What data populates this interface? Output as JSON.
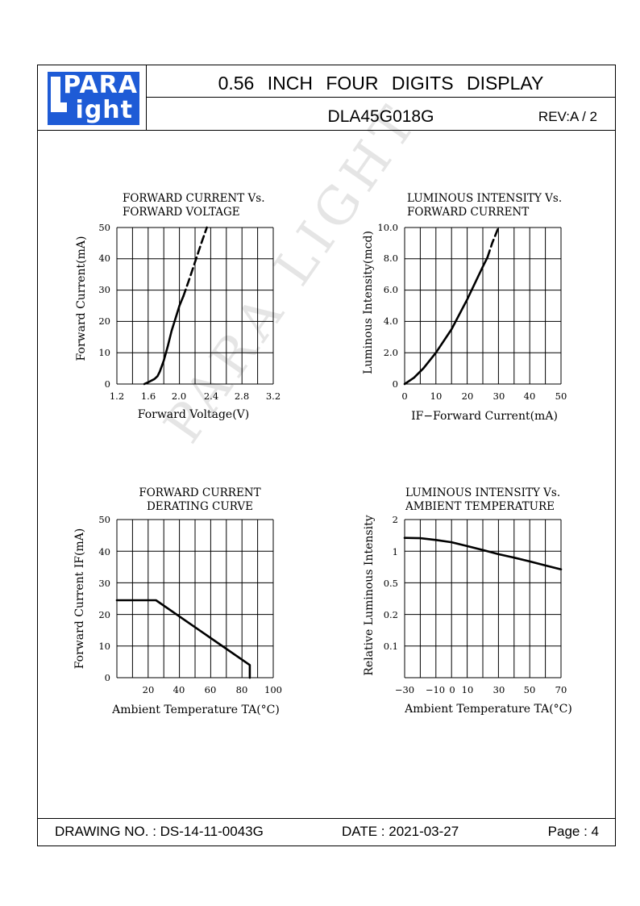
{
  "header": {
    "logo_line1": "PARA",
    "logo_line2": "ight",
    "title": "0.56 INCH FOUR DIGITS DISPLAY",
    "model": "DLA45G018G",
    "revision": "REV:A / 2"
  },
  "footer": {
    "drawing_no": "DRAWING NO. : DS-14-11-0043G",
    "date": "DATE : 2021-03-27",
    "page": "Page : 4"
  },
  "watermark": "PARA LIGHT",
  "colors": {
    "logo_blue": "#1e5bd6",
    "grid": "#000000",
    "curve": "#000000"
  },
  "chart_data": [
    {
      "type": "line",
      "title": [
        "FORWARD CURRENT Vs.",
        "FORWARD VOLTAGE"
      ],
      "xlabel": "Forward Voltage(V)",
      "ylabel": "Forward Current(mA)",
      "xticks": [
        "1.2",
        "1.6",
        "2.0",
        "2.4",
        "2.8",
        "3.2"
      ],
      "yticks": [
        "0",
        "10",
        "20",
        "30",
        "40",
        "50"
      ],
      "xlim": [
        1.2,
        3.2
      ],
      "ylim": [
        0,
        50
      ],
      "grid": true,
      "series": [
        {
          "style": "solid",
          "x": [
            1.55,
            1.62,
            1.68,
            1.72,
            1.75,
            1.8,
            1.85,
            1.9,
            1.95,
            2.0,
            2.05
          ],
          "y": [
            0,
            0.8,
            1.6,
            2.5,
            4,
            7.5,
            12,
            17,
            21,
            25,
            28
          ]
        },
        {
          "style": "dashed",
          "x": [
            2.05,
            2.12,
            2.2,
            2.28,
            2.35
          ],
          "y": [
            28,
            33,
            39,
            45,
            50
          ]
        }
      ]
    },
    {
      "type": "line",
      "title": [
        "LUMINOUS INTENSITY Vs.",
        "FORWARD CURRENT"
      ],
      "xlabel": "IF−Forward Current(mA)",
      "ylabel": "Luminous Intensity(mcd)",
      "xticks": [
        "0",
        "10",
        "20",
        "30",
        "40",
        "50"
      ],
      "yticks": [
        "0",
        "2.0",
        "4.0",
        "6.0",
        "8.0",
        "10.0"
      ],
      "xlim": [
        0,
        50
      ],
      "ylim": [
        0,
        10
      ],
      "grid": true,
      "series": [
        {
          "style": "solid",
          "x": [
            0,
            3,
            6,
            10,
            15,
            20,
            25,
            26.5
          ],
          "y": [
            0,
            0.4,
            1.0,
            2.0,
            3.5,
            5.4,
            7.5,
            8.1
          ]
        },
        {
          "style": "dashed",
          "x": [
            26.5,
            28,
            30
          ],
          "y": [
            8.1,
            9.0,
            10.0
          ]
        }
      ]
    },
    {
      "type": "line",
      "title": [
        "FORWARD CURRENT",
        "DERATING CURVE"
      ],
      "xlabel": "Ambient Temperature TA(°C)",
      "ylabel": "Forward Current IF(mA)",
      "xticks": [
        "20",
        "40",
        "60",
        "80",
        "100"
      ],
      "yticks": [
        "0",
        "10",
        "20",
        "30",
        "40",
        "50"
      ],
      "xlim": [
        0,
        100
      ],
      "ylim": [
        0,
        50
      ],
      "grid": true,
      "series": [
        {
          "style": "solid",
          "x": [
            0,
            25,
            85,
            85
          ],
          "y": [
            24.5,
            24.5,
            4,
            0
          ]
        }
      ]
    },
    {
      "type": "line",
      "title": [
        "LUMINOUS INTENSITY Vs.",
        "AMBIENT TEMPERATURE"
      ],
      "xlabel": "Ambient Temperature TA(°C)",
      "ylabel": "Relative Luminous Intensity",
      "xticks": [
        "−30",
        "−10",
        "0",
        "10",
        "30",
        "50",
        "70"
      ],
      "yticks": [
        "0.1",
        "0.2",
        "0.5",
        "1",
        "2"
      ],
      "xlim": [
        -30,
        70
      ],
      "y_scale": "log",
      "grid": true,
      "series": [
        {
          "style": "solid",
          "x": [
            -30,
            -20,
            -10,
            0,
            10,
            20,
            30,
            40,
            50,
            60,
            70
          ],
          "y": [
            1.35,
            1.34,
            1.29,
            1.23,
            1.13,
            1.04,
            0.95,
            0.88,
            0.81,
            0.74,
            0.68
          ]
        }
      ]
    }
  ]
}
